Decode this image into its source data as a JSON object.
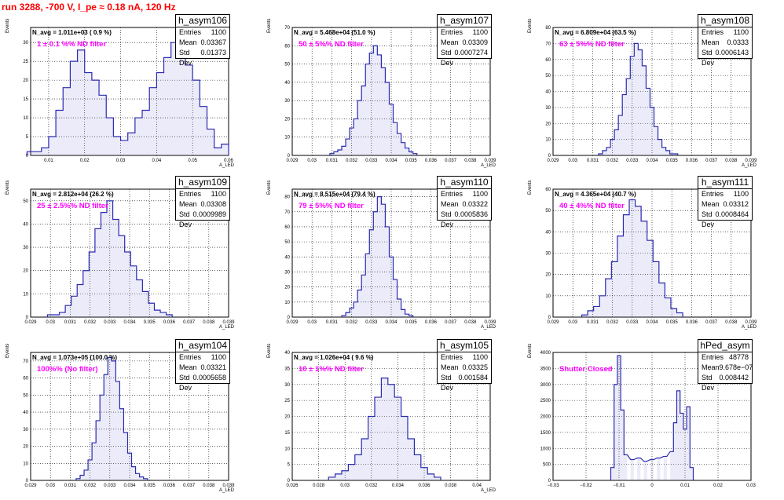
{
  "page": {
    "title": "run 3288,  -700 V, I_pe ≈ 0.18 nA, 120 Hz"
  },
  "stat_labels": {
    "entries": "Entries",
    "mean": "Mean",
    "stddev": "Std Dev"
  },
  "colors": {
    "histogram_line": "#2a2ab0",
    "histogram_fill": "#7a7ad6",
    "annotation": "#ff00ff",
    "title": "#ff0000"
  },
  "chart_data": [
    {
      "type": "histogram",
      "name": "h_asym106",
      "navg": "N_avg = 1.011e+03 ( 0.9 %)",
      "note": "1 ± 0.1 %% ND filter",
      "entries": "1100",
      "mean": "0.03367",
      "stddev": "0.01373",
      "ylabel": "Events",
      "xlabel": "A_LED",
      "xlim": [
        0.005,
        0.06
      ],
      "ylim": [
        0,
        34
      ],
      "xticks": [
        0.01,
        0.02,
        0.03,
        0.04,
        0.05,
        0.06
      ],
      "xtick_labels": [
        "0.01",
        "0.02",
        "0.03",
        "0.04",
        "0.05",
        "0.06"
      ],
      "yticks": [
        0,
        5,
        10,
        15,
        20,
        25,
        30
      ],
      "ytick_labels": [
        "0",
        "5",
        "10",
        "15",
        "20",
        "25",
        "30"
      ],
      "bin_centers": [
        0.005,
        0.007,
        0.009,
        0.011,
        0.013,
        0.015,
        0.017,
        0.019,
        0.021,
        0.023,
        0.025,
        0.027,
        0.029,
        0.031,
        0.033,
        0.035,
        0.037,
        0.039,
        0.041,
        0.043,
        0.045,
        0.047,
        0.049,
        0.051,
        0.053,
        0.055,
        0.057,
        0.059
      ],
      "values": [
        1,
        1,
        2,
        5,
        12,
        18,
        25,
        28,
        22,
        20,
        16,
        10,
        5,
        4,
        6,
        10,
        12,
        18,
        22,
        26,
        30,
        28,
        24,
        20,
        13,
        7,
        2,
        3
      ]
    },
    {
      "type": "histogram",
      "name": "h_asym107",
      "navg": "N_avg = 5.468e+04 (51.0 %)",
      "note": "50 ± 5%% ND filter",
      "entries": "1100",
      "mean": "0.03309",
      "stddev": "0.0007274",
      "ylabel": "Events",
      "xlabel": "A_LED",
      "xlim": [
        0.029,
        0.039
      ],
      "ylim": [
        0,
        70
      ],
      "xticks": [
        0.029,
        0.03,
        0.031,
        0.032,
        0.033,
        0.034,
        0.035,
        0.036,
        0.037,
        0.038,
        0.039
      ],
      "xtick_labels": [
        "0.029",
        "0.03",
        "0.031",
        "0.032",
        "0.033",
        "0.034",
        "0.035",
        "0.036",
        "0.037",
        "0.038",
        "0.039"
      ],
      "yticks": [
        0,
        10,
        20,
        30,
        40,
        50,
        60,
        70
      ],
      "ytick_labels": [
        "0",
        "10",
        "20",
        "30",
        "40",
        "50",
        "60",
        "70"
      ],
      "bin_centers": [
        0.031,
        0.0312,
        0.0314,
        0.0316,
        0.0318,
        0.032,
        0.0322,
        0.0324,
        0.0326,
        0.0328,
        0.033,
        0.0332,
        0.0334,
        0.0336,
        0.0338,
        0.034,
        0.0342,
        0.0344,
        0.0346,
        0.0348,
        0.035,
        0.0352
      ],
      "values": [
        1,
        2,
        3,
        5,
        9,
        15,
        20,
        30,
        38,
        50,
        56,
        60,
        55,
        48,
        40,
        28,
        18,
        12,
        7,
        4,
        2,
        1
      ]
    },
    {
      "type": "histogram",
      "name": "h_asym108",
      "navg": "N_avg = 6.809e+04 (63.5 %)",
      "note": "63 ± 5%% ND filter",
      "entries": "1100",
      "mean": "0.0333",
      "stddev": "0.0006143",
      "ylabel": "Events",
      "xlabel": "A_LED",
      "xlim": [
        0.029,
        0.039
      ],
      "ylim": [
        0,
        80
      ],
      "xticks": [
        0.029,
        0.03,
        0.031,
        0.032,
        0.033,
        0.034,
        0.035,
        0.036,
        0.037,
        0.038,
        0.039
      ],
      "xtick_labels": [
        "0.029",
        "0.03",
        "0.031",
        "0.032",
        "0.033",
        "0.034",
        "0.035",
        "0.036",
        "0.037",
        "0.038",
        "0.039"
      ],
      "yticks": [
        0,
        10,
        20,
        30,
        40,
        50,
        60,
        70,
        80
      ],
      "ytick_labels": [
        "0",
        "10",
        "20",
        "30",
        "40",
        "50",
        "60",
        "70",
        "80"
      ],
      "bin_centers": [
        0.0314,
        0.0316,
        0.0318,
        0.032,
        0.0322,
        0.0324,
        0.0326,
        0.0328,
        0.033,
        0.0332,
        0.0334,
        0.0336,
        0.0338,
        0.034,
        0.0342,
        0.0344,
        0.0346,
        0.0348,
        0.035,
        0.0352
      ],
      "values": [
        1,
        3,
        5,
        10,
        16,
        25,
        38,
        48,
        62,
        70,
        66,
        56,
        42,
        30,
        18,
        10,
        5,
        3,
        1,
        1
      ]
    },
    {
      "type": "histogram",
      "name": "h_asym109",
      "navg": "N_avg = 2.812e+04 (26.2 %)",
      "note": "25 ± 2.5%% ND filter",
      "entries": "1100",
      "mean": "0.03308",
      "stddev": "0.0009989",
      "ylabel": "Events",
      "xlabel": "A_LED",
      "xlim": [
        0.029,
        0.039
      ],
      "ylim": [
        0,
        55
      ],
      "xticks": [
        0.029,
        0.03,
        0.031,
        0.032,
        0.033,
        0.034,
        0.035,
        0.036,
        0.037,
        0.038,
        0.039
      ],
      "xtick_labels": [
        "0.029",
        "0.03",
        "0.031",
        "0.032",
        "0.033",
        "0.034",
        "0.035",
        "0.036",
        "0.037",
        "0.038",
        "0.039"
      ],
      "yticks": [
        0,
        10,
        20,
        30,
        40,
        50
      ],
      "ytick_labels": [
        "0",
        "10",
        "20",
        "30",
        "40",
        "50"
      ],
      "bin_centers": [
        0.03,
        0.0303,
        0.0306,
        0.0309,
        0.0312,
        0.0315,
        0.0318,
        0.0321,
        0.0324,
        0.0327,
        0.033,
        0.0333,
        0.0336,
        0.0339,
        0.0342,
        0.0345,
        0.0348,
        0.0351,
        0.0354,
        0.0357,
        0.036
      ],
      "values": [
        1,
        1,
        2,
        5,
        9,
        14,
        20,
        28,
        38,
        45,
        50,
        42,
        35,
        28,
        22,
        16,
        11,
        6,
        3,
        2,
        1
      ]
    },
    {
      "type": "histogram",
      "name": "h_asym110",
      "navg": "N_avg = 8.515e+04 (79.4 %)",
      "note": "79 ± 5%% ND filter",
      "entries": "1100",
      "mean": "0.03322",
      "stddev": "0.0005836",
      "ylabel": "Events",
      "xlabel": "A_LED",
      "xlim": [
        0.029,
        0.039
      ],
      "ylim": [
        0,
        85
      ],
      "xticks": [
        0.029,
        0.03,
        0.031,
        0.032,
        0.033,
        0.034,
        0.035,
        0.036,
        0.037,
        0.038,
        0.039
      ],
      "xtick_labels": [
        "0.029",
        "0.03",
        "0.031",
        "0.032",
        "0.033",
        "0.034",
        "0.035",
        "0.036",
        "0.037",
        "0.038",
        "0.039"
      ],
      "yticks": [
        0,
        10,
        20,
        30,
        40,
        50,
        60,
        70,
        80
      ],
      "ytick_labels": [
        "0",
        "10",
        "20",
        "30",
        "40",
        "50",
        "60",
        "70",
        "80"
      ],
      "bin_centers": [
        0.0316,
        0.0318,
        0.032,
        0.0322,
        0.0324,
        0.0326,
        0.0328,
        0.033,
        0.0332,
        0.0334,
        0.0336,
        0.0338,
        0.034,
        0.0342,
        0.0344,
        0.0346,
        0.0348,
        0.035
      ],
      "values": [
        1,
        3,
        6,
        10,
        18,
        28,
        42,
        58,
        70,
        80,
        75,
        60,
        40,
        25,
        12,
        5,
        2,
        1
      ]
    },
    {
      "type": "histogram",
      "name": "h_asym111",
      "navg": "N_avg = 4.365e+04 (40.7 %)",
      "note": "40 ± 4%% ND filter",
      "entries": "1100",
      "mean": "0.03312",
      "stddev": "0.0008464",
      "ylabel": "Events",
      "xlabel": "A_LED",
      "xlim": [
        0.029,
        0.039
      ],
      "ylim": [
        0,
        60
      ],
      "xticks": [
        0.029,
        0.03,
        0.031,
        0.032,
        0.033,
        0.034,
        0.035,
        0.036,
        0.037,
        0.038,
        0.039
      ],
      "xtick_labels": [
        "0.029",
        "0.03",
        "0.031",
        "0.032",
        "0.033",
        "0.034",
        "0.035",
        "0.036",
        "0.037",
        "0.038",
        "0.039"
      ],
      "yticks": [
        0,
        10,
        20,
        30,
        40,
        50,
        60
      ],
      "ytick_labels": [
        "0",
        "10",
        "20",
        "30",
        "40",
        "50",
        "60"
      ],
      "bin_centers": [
        0.0306,
        0.0309,
        0.0312,
        0.0315,
        0.0318,
        0.0321,
        0.0324,
        0.0327,
        0.033,
        0.0333,
        0.0336,
        0.0339,
        0.0342,
        0.0345,
        0.0348,
        0.0351,
        0.0354
      ],
      "values": [
        1,
        3,
        5,
        10,
        18,
        26,
        38,
        48,
        55,
        52,
        45,
        36,
        26,
        16,
        9,
        4,
        2
      ]
    },
    {
      "type": "histogram",
      "name": "h_asym104",
      "navg": "N_avg = 1.073e+05 (100.0 %)",
      "note": "100%% (No filter)",
      "entries": "1100",
      "mean": "0.03321",
      "stddev": "0.0005658",
      "ylabel": "Events",
      "xlabel": "A_LED",
      "xlim": [
        0.029,
        0.039
      ],
      "ylim": [
        0,
        75
      ],
      "xticks": [
        0.029,
        0.03,
        0.031,
        0.032,
        0.033,
        0.034,
        0.035,
        0.036,
        0.037,
        0.038,
        0.039
      ],
      "xtick_labels": [
        "0.029",
        "0.03",
        "0.031",
        "0.032",
        "0.033",
        "0.034",
        "0.035",
        "0.036",
        "0.037",
        "0.038",
        "0.039"
      ],
      "yticks": [
        0,
        10,
        20,
        30,
        40,
        50,
        60,
        70
      ],
      "ytick_labels": [
        "0",
        "10",
        "20",
        "30",
        "40",
        "50",
        "60",
        "70"
      ],
      "bin_centers": [
        0.0314,
        0.0316,
        0.0318,
        0.032,
        0.0322,
        0.0324,
        0.0326,
        0.0328,
        0.033,
        0.0332,
        0.0334,
        0.0336,
        0.0338,
        0.034,
        0.0342,
        0.0344,
        0.0346,
        0.0348
      ],
      "values": [
        1,
        3,
        6,
        12,
        22,
        35,
        50,
        62,
        72,
        70,
        58,
        42,
        28,
        16,
        8,
        4,
        2,
        1
      ]
    },
    {
      "type": "histogram",
      "name": "h_asym105",
      "navg": "N_avg = 1.026e+04 ( 9.6 %)",
      "note": "10 ± 1%% ND filter",
      "entries": "1100",
      "mean": "0.03325",
      "stddev": "0.001584",
      "ylabel": "Events",
      "xlabel": "A_LED",
      "xlim": [
        0.026,
        0.041
      ],
      "ylim": [
        0,
        40
      ],
      "xticks": [
        0.026,
        0.028,
        0.03,
        0.032,
        0.034,
        0.036,
        0.038,
        0.04
      ],
      "xtick_labels": [
        "0.026",
        "0.028",
        "0.03",
        "0.032",
        "0.034",
        "0.036",
        "0.038",
        "0.04"
      ],
      "yticks": [
        0,
        5,
        10,
        15,
        20,
        25,
        30,
        35,
        40
      ],
      "ytick_labels": [
        "0",
        "5",
        "10",
        "15",
        "20",
        "25",
        "30",
        "35",
        "40"
      ],
      "bin_centers": [
        0.029,
        0.0295,
        0.03,
        0.0305,
        0.031,
        0.0315,
        0.032,
        0.0325,
        0.033,
        0.0335,
        0.034,
        0.0345,
        0.035,
        0.0355,
        0.036,
        0.0365,
        0.037
      ],
      "values": [
        1,
        2,
        3,
        5,
        8,
        13,
        20,
        26,
        32,
        30,
        26,
        20,
        13,
        8,
        4,
        2,
        1
      ]
    },
    {
      "type": "histogram",
      "name": "hPed_asym",
      "navg": "",
      "note": "Shutter Closed",
      "entries": "48778",
      "mean": "9.678e−07",
      "stddev": "0.008442",
      "ylabel": "Events",
      "xlabel": "",
      "xlim": [
        -0.03,
        0.03
      ],
      "ylim": [
        0,
        4000
      ],
      "xticks": [
        -0.03,
        -0.02,
        -0.01,
        0,
        0.01,
        0.02,
        0.03
      ],
      "xtick_labels": [
        "−0.03",
        "−0.02",
        "−0.01",
        "0",
        "0.01",
        "0.02",
        "0.03"
      ],
      "yticks": [
        0,
        500,
        1000,
        1500,
        2000,
        2500,
        3000,
        3500,
        4000
      ],
      "ytick_labels": [
        "0",
        "500",
        "1000",
        "1500",
        "2000",
        "2500",
        "3000",
        "3500",
        "4000"
      ],
      "bin_centers": [
        -0.012,
        -0.011,
        -0.01,
        -0.009,
        -0.008,
        -0.006,
        -0.004,
        -0.002,
        0.0,
        0.002,
        0.004,
        0.006,
        0.007,
        0.008,
        0.009,
        0.01,
        0.011,
        0.012
      ],
      "values": [
        400,
        3000,
        3900,
        2200,
        800,
        650,
        700,
        600,
        650,
        700,
        750,
        900,
        1800,
        2800,
        2100,
        1600,
        2300,
        400
      ]
    }
  ]
}
